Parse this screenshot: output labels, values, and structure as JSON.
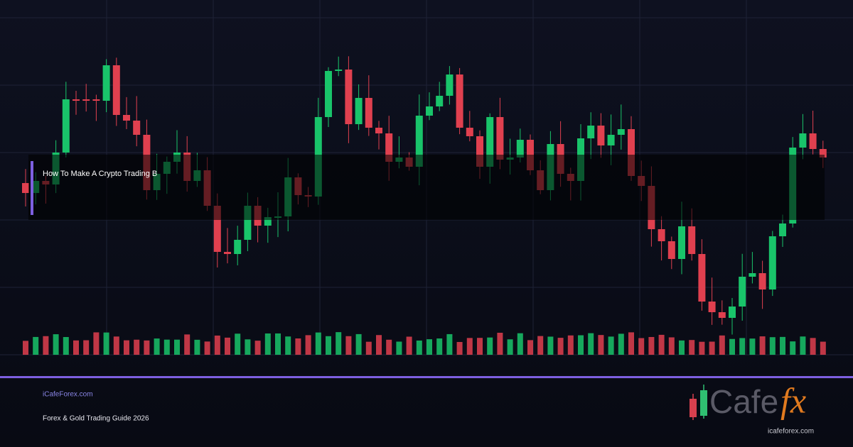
{
  "card": {
    "title": "How To Make A Crypto Trading B",
    "site": "iCafeForex.com",
    "subtitle": "Forex & Gold Trading Guide 2026",
    "logo": {
      "main": "Cafe",
      "accent": "fx",
      "url": "icafeforex.com"
    }
  }
}
